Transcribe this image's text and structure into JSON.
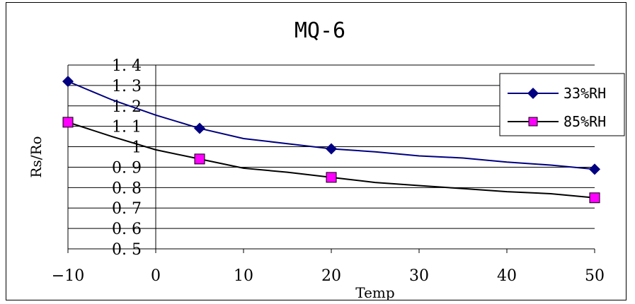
{
  "chart_data": {
    "type": "line",
    "title": "MQ-6",
    "xlabel": "Temp",
    "ylabel": "Rs/Ro",
    "xlim": [
      -10,
      50
    ],
    "ylim": [
      0.5,
      1.4
    ],
    "x_ticks": [
      -10,
      0,
      10,
      20,
      30,
      40,
      50
    ],
    "y_ticks": [
      1.4,
      1.3,
      1.2,
      1.1,
      1,
      0.9,
      0.8,
      0.7,
      0.6,
      0.5
    ],
    "x_tick_labels": [
      "−10",
      "0",
      "10",
      "20",
      "30",
      "40",
      "50"
    ],
    "y_tick_labels": [
      "1. 4",
      "1. 3",
      "1. 2",
      "1. 1",
      "1",
      "0. 9",
      "0. 8",
      "0. 7",
      "0. 6",
      "0. 5"
    ],
    "grid": "horizontal",
    "legend_position": "top-right",
    "series": [
      {
        "name": "33%RH",
        "color": "#000080",
        "marker": "diamond",
        "x": [
          -10,
          5,
          20,
          50
        ],
        "values": [
          1.32,
          1.09,
          0.99,
          0.89
        ],
        "curve_x": [
          -10,
          -5,
          0,
          5,
          10,
          15,
          20,
          25,
          30,
          35,
          40,
          45,
          50
        ],
        "curve_y": [
          1.32,
          1.23,
          1.155,
          1.09,
          1.04,
          1.015,
          0.99,
          0.975,
          0.955,
          0.945,
          0.925,
          0.91,
          0.89
        ]
      },
      {
        "name": "85%RH",
        "color": "#ff00ff",
        "line_color": "#000000",
        "marker": "square",
        "x": [
          -10,
          5,
          20,
          50
        ],
        "values": [
          1.12,
          0.94,
          0.85,
          0.75
        ],
        "curve_x": [
          -10,
          -5,
          0,
          5,
          10,
          15,
          20,
          25,
          30,
          35,
          40,
          45,
          50
        ],
        "curve_y": [
          1.12,
          1.05,
          0.985,
          0.94,
          0.895,
          0.875,
          0.85,
          0.825,
          0.81,
          0.795,
          0.78,
          0.77,
          0.75
        ]
      }
    ]
  }
}
